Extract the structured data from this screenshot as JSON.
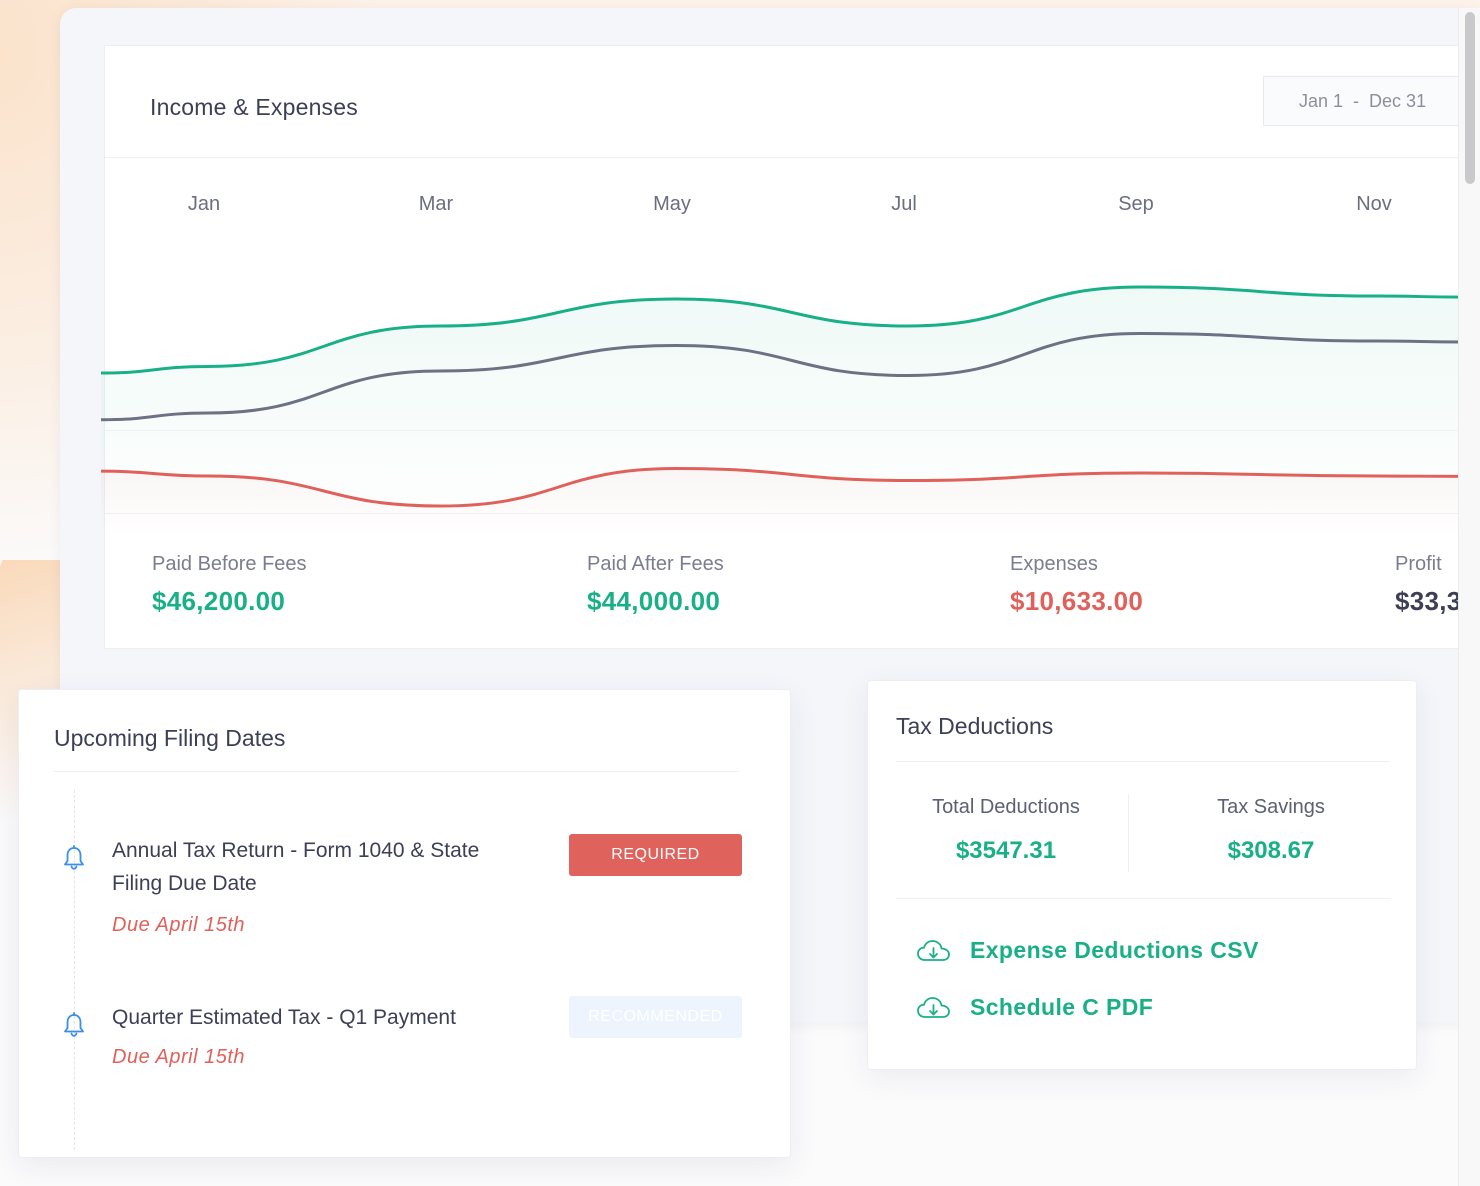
{
  "income_expenses": {
    "title": "Income & Expenses",
    "date_range": {
      "start": "Jan 1",
      "separator": "-",
      "end": "Dec 31"
    },
    "months": [
      "Jan",
      "Mar",
      "May",
      "Jul",
      "Sep",
      "Nov"
    ],
    "stats": [
      {
        "label": "Paid Before Fees",
        "value": "$46,200.00",
        "tone": "green"
      },
      {
        "label": "Paid After Fees",
        "value": "$44,000.00",
        "tone": "green"
      },
      {
        "label": "Expenses",
        "value": "$10,633.00",
        "tone": "red"
      },
      {
        "label": "Profit",
        "value": "$33,3",
        "tone": "dark"
      }
    ]
  },
  "chart_data": {
    "type": "line",
    "x": [
      "Jan",
      "Mar",
      "May",
      "Jul",
      "Sep",
      "Nov"
    ],
    "series": [
      {
        "color": "#19b088",
        "values": [
          0.13,
          0.4,
          0.58,
          0.4,
          0.66,
          0.6
        ]
      },
      {
        "color": "#6e7083",
        "values": [
          -0.18,
          0.1,
          0.27,
          0.07,
          0.35,
          0.3
        ]
      },
      {
        "color": "#e0615b",
        "values": [
          -0.6,
          -0.8,
          -0.55,
          -0.63,
          -0.58,
          -0.6
        ]
      }
    ],
    "ylim": [
      -1,
      1
    ]
  },
  "filing": {
    "title": "Upcoming Filing Dates",
    "items": [
      {
        "title_line1": "Annual Tax Return - Form 1040 & State",
        "title_line2": "Filing Due Date",
        "due": "Due April 15th",
        "badge": "REQUIRED"
      },
      {
        "title_line1": "Quarter Estimated Tax - Q1 Payment",
        "title_line2": "",
        "due": "Due April 15th",
        "badge": "RECOMMENDED"
      }
    ]
  },
  "tax": {
    "title": "Tax Deductions",
    "total_label": "Total Deductions",
    "total_value": "$3547.31",
    "savings_label": "Tax Savings",
    "savings_value": "$308.67",
    "links": [
      {
        "label": "Expense Deductions CSV",
        "icon": "cloud-download-icon"
      },
      {
        "label": "Schedule C PDF",
        "icon": "cloud-download-icon"
      }
    ]
  },
  "colors": {
    "green": "#19b088",
    "red": "#e0615b",
    "dark": "#3c3f56"
  }
}
